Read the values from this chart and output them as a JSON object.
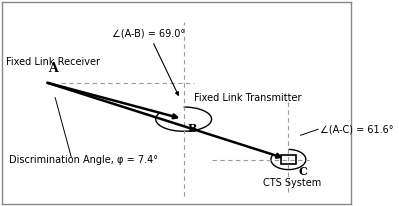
{
  "A": [
    0.13,
    0.6
  ],
  "B": [
    0.52,
    0.42
  ],
  "C": [
    0.82,
    0.22
  ],
  "label_A": "A",
  "label_B": "B",
  "label_C": "C",
  "label_Fixed_Link_Receiver": "Fixed Link Receiver",
  "label_Fixed_Link_Transmitter": "Fixed Link Transmitter",
  "label_CTS": "CTS System",
  "label_disc": "Discrimination Angle, φ = 7.4°",
  "label_angle_AB": "∠(A-B) = 69.0°",
  "label_angle_AC": "∠(A-C) = 61.6°",
  "bg_color": "#ffffff",
  "line_color": "#000000",
  "dashed_color": "#999999",
  "fontsize_label": 7,
  "fontsize_point": 8,
  "border_color": "#888888"
}
